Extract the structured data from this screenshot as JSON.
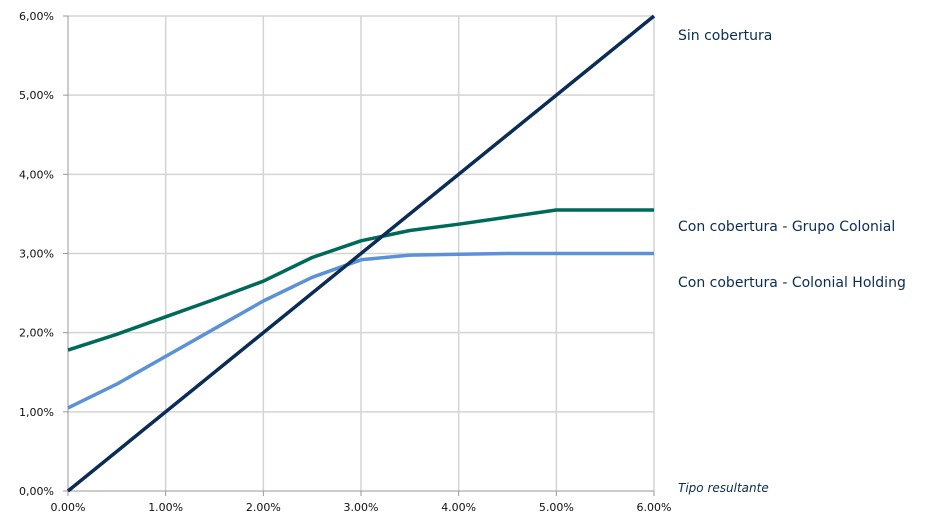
{
  "chart_data": {
    "type": "line",
    "xlabel": "Tipo resultante",
    "ylabel": "",
    "x_ticks": [
      "0.00%",
      "1.00%",
      "2.00%",
      "3.00%",
      "4.00%",
      "5.00%",
      "6.00%"
    ],
    "y_ticks": [
      "0,00%",
      "1,00%",
      "2,00%",
      "3,00%",
      "4,00%",
      "5,00%",
      "6,00%"
    ],
    "xlim": [
      0,
      6
    ],
    "ylim": [
      0,
      6
    ],
    "grid": true,
    "series": [
      {
        "name": "Sin cobertura",
        "color": "#0b2d55",
        "points": [
          [
            0,
            0
          ],
          [
            6,
            6
          ]
        ]
      },
      {
        "name": "Con cobertura - Grupo Colonial",
        "color": "#006a5a",
        "points": [
          [
            0,
            1.78
          ],
          [
            0.5,
            1.98
          ],
          [
            1.0,
            2.2
          ],
          [
            1.5,
            2.42
          ],
          [
            2.0,
            2.65
          ],
          [
            2.5,
            2.95
          ],
          [
            3.0,
            3.16
          ],
          [
            3.5,
            3.29
          ],
          [
            4.0,
            3.37
          ],
          [
            4.5,
            3.46
          ],
          [
            5.0,
            3.55
          ],
          [
            6.0,
            3.55
          ]
        ]
      },
      {
        "name": "Con cobertura - Colonial Holding",
        "color": "#5b91d6",
        "points": [
          [
            0,
            1.05
          ],
          [
            0.5,
            1.35
          ],
          [
            1.0,
            1.7
          ],
          [
            1.5,
            2.05
          ],
          [
            2.0,
            2.4
          ],
          [
            2.5,
            2.7
          ],
          [
            3.0,
            2.92
          ],
          [
            3.5,
            2.98
          ],
          [
            4.0,
            2.99
          ],
          [
            4.5,
            3.0
          ],
          [
            5.0,
            3.0
          ],
          [
            6.0,
            3.0
          ]
        ]
      }
    ]
  }
}
